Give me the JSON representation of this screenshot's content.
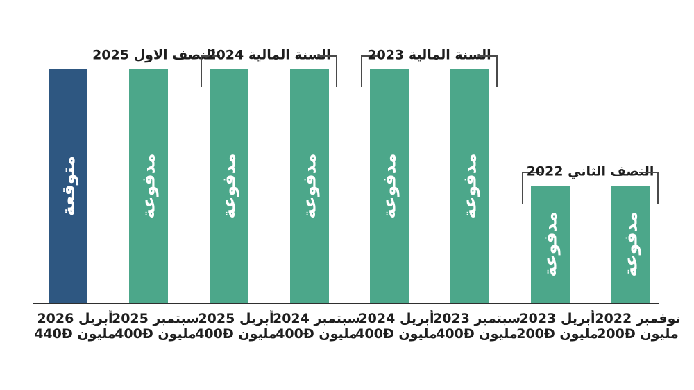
{
  "chart_data": {
    "type": "bar",
    "direction": "rtl",
    "title": "",
    "unit_label": "مليون",
    "currency_symbol": "Ð",
    "ylim": [
      0,
      440
    ],
    "grid": false,
    "legend_position": "none",
    "categories": [
      "أبريل 2026",
      "سبتمبر 2025",
      "أبريل 2025",
      "سبتمبر 2024",
      "أبريل 2024",
      "سبتمبر 2023",
      "أبريل 2023",
      "نوفمبر 2022"
    ],
    "values": [
      440,
      400,
      400,
      400,
      400,
      400,
      200,
      200
    ],
    "bars": [
      {
        "date": "أبريل 2026",
        "value": 440,
        "amount_label": "440Ð مليون",
        "status": "متوقعة",
        "type": "expected",
        "size": "tall"
      },
      {
        "date": "سبتمبر 2025",
        "value": 400,
        "amount_label": "400Ð مليون",
        "status": "مدفوعة",
        "type": "paid",
        "size": "tall"
      },
      {
        "date": "أبريل 2025",
        "value": 400,
        "amount_label": "400Ð مليون",
        "status": "مدفوعة",
        "type": "paid",
        "size": "tall"
      },
      {
        "date": "سبتمبر 2024",
        "value": 400,
        "amount_label": "400Ð مليون",
        "status": "مدفوعة",
        "type": "paid",
        "size": "tall"
      },
      {
        "date": "أبريل 2024",
        "value": 400,
        "amount_label": "400Ð مليون",
        "status": "مدفوعة",
        "type": "paid",
        "size": "tall"
      },
      {
        "date": "سبتمبر 2023",
        "value": 400,
        "amount_label": "400Ð مليون",
        "status": "مدفوعة",
        "type": "paid",
        "size": "tall"
      },
      {
        "date": "أبريل 2023",
        "value": 200,
        "amount_label": "200Ð مليون",
        "status": "مدفوعة",
        "type": "paid",
        "size": "short"
      },
      {
        "date": "نوفمبر 2022",
        "value": 200,
        "amount_label": "200Ð مليون",
        "status": "مدفوعة",
        "type": "paid",
        "size": "short"
      }
    ],
    "groups": [
      {
        "label": "النصف الاول 2025",
        "bars": [
          1,
          1
        ],
        "bracket": false
      },
      {
        "label": "السنة المالية 2024",
        "bars": [
          2,
          3
        ],
        "bracket": true
      },
      {
        "label": "السنة المالية 2023",
        "bars": [
          4,
          5
        ],
        "bracket": true
      },
      {
        "label": "النصف الثاني 2022",
        "bars": [
          6,
          7
        ],
        "bracket": true
      }
    ],
    "colors": {
      "expected": "#2E5781",
      "paid": "#4CA78A",
      "bar_text": "#FFFFFF",
      "label_text": "#1E1E1E",
      "bracket": "#4A4A4A",
      "axis": "#2F2F2F",
      "background": "#FFFFFF"
    }
  }
}
